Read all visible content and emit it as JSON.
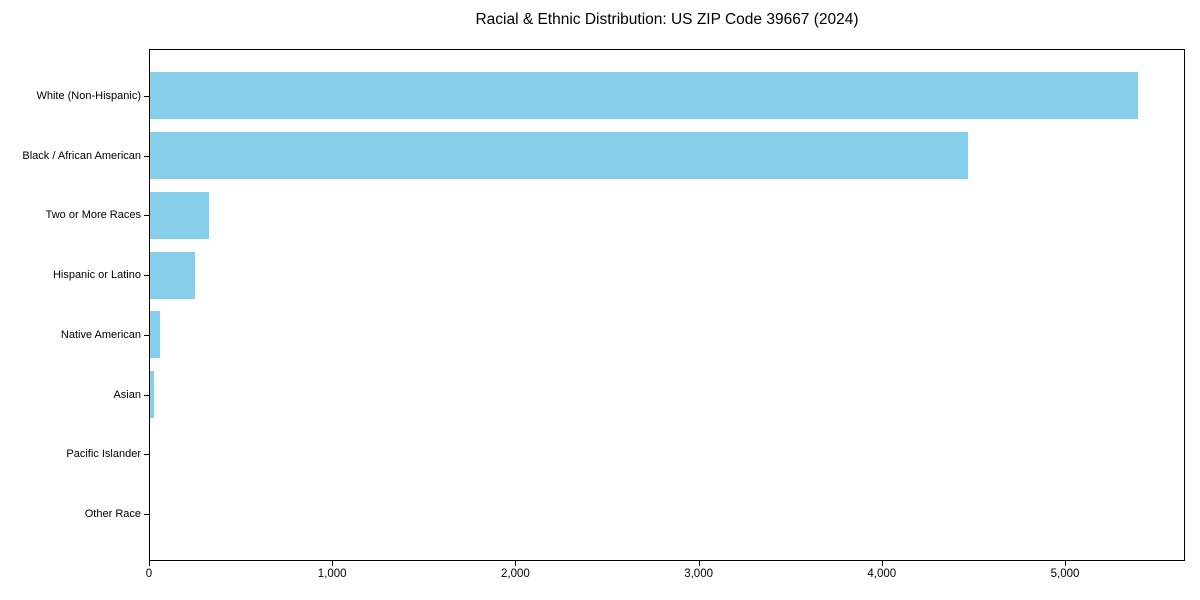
{
  "title": "Racial & Ethnic Distribution: US ZIP Code 39667 (2024)",
  "colors": {
    "bar": "#87CEEB",
    "spine": "#000000",
    "text": "#000000",
    "background": "#ffffff"
  },
  "chart_data": {
    "type": "bar",
    "orientation": "horizontal",
    "title": "Racial & Ethnic Distribution: US ZIP Code 39667 (2024)",
    "categories": [
      "White (Non-Hispanic)",
      "Black / African American",
      "Two or More Races",
      "Hispanic or Latino",
      "Native American",
      "Asian",
      "Pacific Islander",
      "Other Race"
    ],
    "values": [
      5393,
      4465,
      324,
      247,
      55,
      20,
      0,
      0
    ],
    "xlabel": "",
    "ylabel": "",
    "xlim": [
      0,
      5655
    ],
    "xticks": [
      0,
      1000,
      2000,
      3000,
      4000,
      5000
    ],
    "xtick_labels": [
      "0",
      "1,000",
      "2,000",
      "3,000",
      "4,000",
      "5,000"
    ],
    "grid": false,
    "legend_position": "none",
    "bar_color": "#87CEEB"
  }
}
